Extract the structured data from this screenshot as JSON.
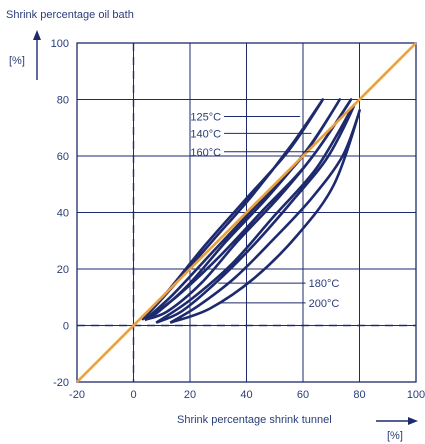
{
  "chart_data": {
    "type": "line",
    "ylabel": "Shrink percentage oil bath",
    "xlabel": "Shrink percentage shrink tunnel",
    "y_unit": "[%]",
    "x_unit": "[%]",
    "xlim": [
      -20,
      100
    ],
    "ylim": [
      -20,
      100
    ],
    "xticks": [
      "-20",
      "0",
      "20",
      "40",
      "60",
      "80",
      "100"
    ],
    "yticks": [
      "-20",
      "0",
      "20",
      "40",
      "60",
      "80",
      "100"
    ],
    "grid": true,
    "colors": {
      "frame": "#1e2a6e",
      "loop": "#1e2a6e",
      "diagonal": "#f0a030",
      "text": "#2a3d7a"
    },
    "diagonal": {
      "x": [
        -20,
        100
      ],
      "y": [
        -20,
        100
      ]
    },
    "reference_lines": {
      "x": 0,
      "y": 0,
      "style": "dashed"
    },
    "series": [
      {
        "name": "125°C",
        "x": [
          3,
          12,
          25,
          40,
          55,
          67,
          56,
          42,
          28,
          15,
          6,
          3
        ],
        "y": [
          2,
          12,
          28,
          45,
          62,
          80,
          64,
          46,
          30,
          15,
          5,
          2
        ]
      },
      {
        "name": "140°C",
        "x": [
          4,
          14,
          28,
          44,
          60,
          73,
          62,
          48,
          33,
          20,
          9,
          4
        ],
        "y": [
          2,
          11,
          26,
          43,
          60,
          80,
          63,
          46,
          30,
          15,
          5,
          2
        ]
      },
      {
        "name": "160°C",
        "x": [
          4,
          15,
          30,
          46,
          62,
          77,
          65,
          52,
          37,
          24,
          12,
          4
        ],
        "y": [
          2,
          10,
          24,
          41,
          58,
          80,
          62,
          46,
          30,
          15,
          5,
          2
        ]
      },
      {
        "name": "180°C",
        "x": [
          8,
          20,
          35,
          50,
          65,
          78,
          69,
          57,
          43,
          29,
          17,
          8
        ],
        "y": [
          1,
          9,
          22,
          39,
          56,
          78,
          60,
          45,
          29,
          15,
          5,
          1
        ]
      },
      {
        "name": "200°C",
        "x": [
          13,
          27,
          43,
          58,
          71,
          80,
          74,
          63,
          50,
          36,
          23,
          13
        ],
        "y": [
          1,
          6,
          17,
          32,
          50,
          76,
          60,
          45,
          31,
          17,
          7,
          1
        ]
      }
    ],
    "annotations": [
      {
        "text": "125°C",
        "side": "left",
        "tx": 31,
        "ty": 74,
        "x": 59,
        "y": 74
      },
      {
        "text": "140°C",
        "side": "left",
        "tx": 31,
        "ty": 68,
        "x": 63,
        "y": 68
      },
      {
        "text": "160°C",
        "side": "left",
        "tx": 31,
        "ty": 61.5,
        "x": 64,
        "y": 61.5
      },
      {
        "text": "180°C",
        "side": "right",
        "tx": 62,
        "ty": 15,
        "x": 30,
        "y": 15
      },
      {
        "text": "200°C",
        "side": "right",
        "tx": 62,
        "ty": 8,
        "x": 30,
        "y": 8
      }
    ]
  }
}
